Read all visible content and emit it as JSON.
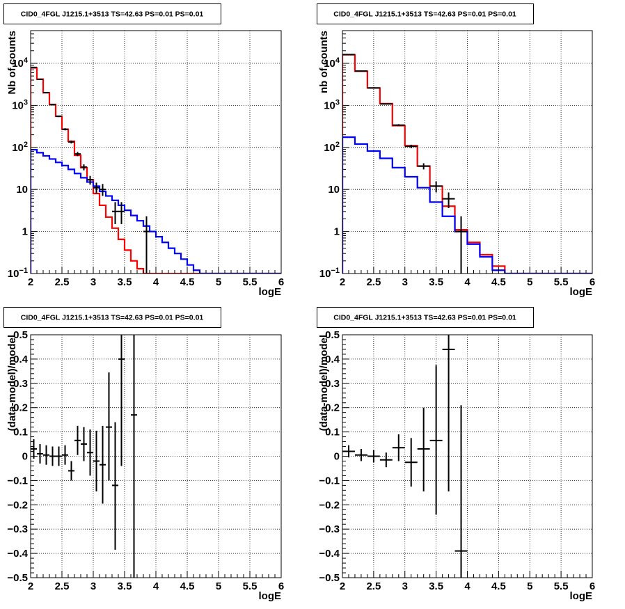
{
  "chart_data": [
    {
      "type": "line",
      "title": "CID0_4FGL J1215.1+3513 TS=42.63 PS=0.01 PS=0.01",
      "xlabel": "logE",
      "ylabel": "Nb of counts",
      "xlim": [
        2,
        6
      ],
      "ylim": [
        0.1,
        60000
      ],
      "yscale": "log",
      "grid": true,
      "xticks": [
        "2",
        "2.5",
        "3",
        "3.5",
        "4",
        "4.5",
        "5",
        "5.5",
        "6"
      ],
      "yticks": [
        {
          "v": 0.1,
          "label": "10",
          "exp": "−1"
        },
        {
          "v": 1,
          "label": "1"
        },
        {
          "v": 10,
          "label": "10"
        },
        {
          "v": 100,
          "label": "10",
          "exp": "2"
        },
        {
          "v": 1000,
          "label": "10",
          "exp": "3"
        },
        {
          "v": 10000,
          "label": "10",
          "exp": "4"
        }
      ],
      "bin_edges": [
        2,
        2.1,
        2.2,
        2.3,
        2.4,
        2.5,
        2.6,
        2.7,
        2.8,
        2.9,
        3.0,
        3.1,
        3.2,
        3.3,
        3.4,
        3.5,
        3.6,
        3.7,
        3.8,
        3.9,
        4.0,
        4.1,
        4.2,
        4.3,
        4.4,
        4.5,
        4.6,
        4.7,
        4.8,
        4.9,
        5.0,
        5.1,
        5.2,
        5.3,
        5.4,
        5.5,
        5.6,
        5.7,
        5.8,
        5.9,
        6.0
      ],
      "series": [
        {
          "color": "#ff0000",
          "style": "step",
          "values": [
            7800,
            4200,
            2000,
            1050,
            550,
            270,
            140,
            65,
            33,
            17,
            8,
            4.2,
            2.2,
            1.2,
            0.65,
            0.36,
            0.2,
            0.13,
            0.1,
            0.1,
            0.1,
            0.1,
            0.1,
            0.1,
            0.1,
            0.1,
            0.1,
            0.1,
            0.1,
            0.1,
            0.1,
            0.1,
            0.1,
            0.1,
            0.1,
            0.1,
            0.1,
            0.1,
            0.1,
            0.1
          ]
        },
        {
          "color": "#0000ff",
          "style": "step",
          "values": [
            88,
            75,
            63,
            53,
            44,
            37,
            30,
            24,
            19,
            15,
            12,
            9,
            7,
            5.5,
            4.2,
            3.2,
            2.4,
            1.8,
            1.35,
            1.0,
            0.75,
            0.55,
            0.4,
            0.3,
            0.22,
            0.16,
            0.12,
            0.1,
            0.1,
            0.1,
            0.1,
            0.1,
            0.1,
            0.1,
            0.1,
            0.1,
            0.1,
            0.1,
            0.1,
            0.1
          ]
        },
        {
          "color": "#000000",
          "style": "errorbar",
          "name": "data",
          "points": [
            {
              "x": 2.05,
              "y": 8000,
              "lo": 7900,
              "hi": 8100
            },
            {
              "x": 2.15,
              "y": 4150,
              "lo": 4090,
              "hi": 4210
            },
            {
              "x": 2.25,
              "y": 2020,
              "lo": 1980,
              "hi": 2065
            },
            {
              "x": 2.35,
              "y": 1040,
              "lo": 1010,
              "hi": 1070
            },
            {
              "x": 2.45,
              "y": 550,
              "lo": 527,
              "hi": 573
            },
            {
              "x": 2.55,
              "y": 270,
              "lo": 254,
              "hi": 286
            },
            {
              "x": 2.65,
              "y": 135,
              "lo": 124,
              "hi": 146
            },
            {
              "x": 2.75,
              "y": 70,
              "lo": 62,
              "hi": 78
            },
            {
              "x": 2.85,
              "y": 34,
              "lo": 28.5,
              "hi": 39.5
            },
            {
              "x": 2.95,
              "y": 17,
              "lo": 13,
              "hi": 21
            },
            {
              "x": 3.05,
              "y": 11,
              "lo": 8,
              "hi": 14.5
            },
            {
              "x": 3.15,
              "y": 10,
              "lo": 7,
              "hi": 13.5
            },
            {
              "x": 3.35,
              "y": 3,
              "lo": 1.5,
              "hi": 5
            },
            {
              "x": 3.45,
              "y": 3,
              "lo": 1.5,
              "hi": 5
            },
            {
              "x": 3.85,
              "y": 1,
              "lo": 0.1,
              "hi": 2.3
            }
          ]
        }
      ]
    },
    {
      "type": "line",
      "title": "CID0_4FGL J1215.1+3513 TS=42.63 PS=0.01 PS=0.01",
      "xlabel": "logE",
      "ylabel": "nb of counts",
      "xlim": [
        2,
        6
      ],
      "ylim": [
        0.1,
        60000
      ],
      "yscale": "log",
      "grid": true,
      "xticks": [
        "2",
        "2.5",
        "3",
        "3.5",
        "4",
        "4.5",
        "5",
        "5.5",
        "6"
      ],
      "yticks": [
        {
          "v": 0.1,
          "label": "10",
          "exp": "−1"
        },
        {
          "v": 1,
          "label": "1"
        },
        {
          "v": 10,
          "label": "10"
        },
        {
          "v": 100,
          "label": "10",
          "exp": "2"
        },
        {
          "v": 1000,
          "label": "10",
          "exp": "3"
        },
        {
          "v": 10000,
          "label": "10",
          "exp": "4"
        }
      ],
      "bin_edges": [
        2,
        2.2,
        2.4,
        2.6,
        2.8,
        3.0,
        3.2,
        3.4,
        3.6,
        3.8,
        4.0,
        4.2,
        4.4,
        4.6,
        4.8,
        5.0,
        5.2,
        5.4,
        5.6,
        5.8,
        6.0
      ],
      "series": [
        {
          "color": "#ff0000",
          "style": "step",
          "values": [
            16000,
            6500,
            2600,
            1100,
            330,
            110,
            36,
            12,
            4,
            1.1,
            0.55,
            0.28,
            0.15,
            0.1,
            0.1,
            0.1,
            0.1,
            0.1,
            0.1,
            0.1
          ]
        },
        {
          "color": "#0000ff",
          "style": "step",
          "values": [
            175,
            120,
            82,
            55,
            33,
            20,
            11,
            5,
            2.3,
            1.0,
            0.5,
            0.25,
            0.12,
            0.1,
            0.1,
            0.1,
            0.1,
            0.1,
            0.1,
            0.1
          ]
        },
        {
          "color": "#000000",
          "style": "errorbar",
          "name": "data",
          "points": [
            {
              "x": 2.1,
              "y": 16200,
              "lo": 16070,
              "hi": 16330
            },
            {
              "x": 2.3,
              "y": 6550,
              "lo": 6470,
              "hi": 6630
            },
            {
              "x": 2.5,
              "y": 2600,
              "lo": 2550,
              "hi": 2650
            },
            {
              "x": 2.7,
              "y": 1080,
              "lo": 1047,
              "hi": 1113
            },
            {
              "x": 2.9,
              "y": 340,
              "lo": 322,
              "hi": 358
            },
            {
              "x": 3.1,
              "y": 106,
              "lo": 96,
              "hi": 116
            },
            {
              "x": 3.3,
              "y": 36,
              "lo": 30,
              "hi": 42
            },
            {
              "x": 3.5,
              "y": 12,
              "lo": 8.5,
              "hi": 15.5
            },
            {
              "x": 3.7,
              "y": 6,
              "lo": 3.6,
              "hi": 8.5
            },
            {
              "x": 3.9,
              "y": 1,
              "lo": 0.1,
              "hi": 2.3
            }
          ]
        }
      ]
    },
    {
      "type": "scatter",
      "title": "CID0_4FGL J1215.1+3513 TS=42.63 PS=0.01 PS=0.01",
      "xlabel": "logE",
      "ylabel": "(data-model)/model",
      "xlim": [
        2,
        6
      ],
      "ylim": [
        -0.5,
        0.5
      ],
      "grid": true,
      "xticks": [
        "2",
        "2.5",
        "3",
        "3.5",
        "4",
        "4.5",
        "5",
        "5.5",
        "6"
      ],
      "yticks": [
        {
          "v": 0.5,
          "label": "0.5"
        },
        {
          "v": 0.4,
          "label": "0.4"
        },
        {
          "v": 0.3,
          "label": "0.3"
        },
        {
          "v": 0.2,
          "label": "0.2"
        },
        {
          "v": 0.1,
          "label": "0.1"
        },
        {
          "v": 0,
          "label": "0"
        },
        {
          "v": -0.1,
          "label": "−0.1"
        },
        {
          "v": -0.2,
          "label": "−0.2"
        },
        {
          "v": -0.3,
          "label": "−0.3"
        },
        {
          "v": -0.4,
          "label": "−0.4"
        },
        {
          "v": -0.5,
          "label": "−0.5"
        }
      ],
      "series": [
        {
          "color": "#000000",
          "style": "errorbar",
          "name": "residuals",
          "xerr": 0.05,
          "points": [
            {
              "x": 2.05,
              "y": 0.03,
              "lo": -0.01,
              "hi": 0.07
            },
            {
              "x": 2.15,
              "y": 0.01,
              "lo": -0.03,
              "hi": 0.05
            },
            {
              "x": 2.25,
              "y": 0.005,
              "lo": -0.035,
              "hi": 0.045
            },
            {
              "x": 2.35,
              "y": 0.0,
              "lo": -0.04,
              "hi": 0.04
            },
            {
              "x": 2.45,
              "y": 0.0,
              "lo": -0.04,
              "hi": 0.04
            },
            {
              "x": 2.55,
              "y": 0.005,
              "lo": -0.035,
              "hi": 0.045
            },
            {
              "x": 2.65,
              "y": -0.06,
              "lo": -0.1,
              "hi": -0.02
            },
            {
              "x": 2.75,
              "y": 0.065,
              "lo": 0.005,
              "hi": 0.125
            },
            {
              "x": 2.85,
              "y": 0.05,
              "lo": -0.02,
              "hi": 0.12
            },
            {
              "x": 2.95,
              "y": 0.015,
              "lo": -0.08,
              "hi": 0.11
            },
            {
              "x": 3.05,
              "y": -0.02,
              "lo": -0.145,
              "hi": 0.105
            },
            {
              "x": 3.15,
              "y": -0.035,
              "lo": -0.195,
              "hi": 0.125
            },
            {
              "x": 3.25,
              "y": 0.12,
              "lo": -0.1,
              "hi": 0.345
            },
            {
              "x": 3.35,
              "y": -0.12,
              "lo": -0.385,
              "hi": 0.14
            },
            {
              "x": 3.45,
              "y": 0.4,
              "lo": -0.04,
              "hi": 0.5
            },
            {
              "x": 3.65,
              "y": 0.17,
              "lo": -0.5,
              "hi": 0.5
            }
          ]
        }
      ]
    },
    {
      "type": "scatter",
      "title": "CID0_4FGL J1215.1+3513 TS=42.63 PS=0.01 PS=0.01",
      "xlabel": "logE",
      "ylabel": "(data-model)/model",
      "xlim": [
        2,
        6
      ],
      "ylim": [
        -0.5,
        0.5
      ],
      "grid": true,
      "xticks": [
        "2",
        "2.5",
        "3",
        "3.5",
        "4",
        "4.5",
        "5",
        "5.5",
        "6"
      ],
      "yticks": [
        {
          "v": 0.5,
          "label": "0.5"
        },
        {
          "v": 0.4,
          "label": "0.4"
        },
        {
          "v": 0.3,
          "label": "0.3"
        },
        {
          "v": 0.2,
          "label": "0.2"
        },
        {
          "v": 0.1,
          "label": "0.1"
        },
        {
          "v": 0,
          "label": "0"
        },
        {
          "v": -0.1,
          "label": "−0.1"
        },
        {
          "v": -0.2,
          "label": "−0.2"
        },
        {
          "v": -0.3,
          "label": "−0.3"
        },
        {
          "v": -0.4,
          "label": "−0.4"
        },
        {
          "v": -0.5,
          "label": "−0.5"
        }
      ],
      "series": [
        {
          "color": "#000000",
          "style": "errorbar",
          "name": "residuals",
          "xerr": 0.1,
          "points": [
            {
              "x": 2.1,
              "y": 0.02,
              "lo": -0.005,
              "hi": 0.045
            },
            {
              "x": 2.3,
              "y": 0.005,
              "lo": -0.02,
              "hi": 0.03
            },
            {
              "x": 2.5,
              "y": 0.0,
              "lo": -0.025,
              "hi": 0.025
            },
            {
              "x": 2.7,
              "y": -0.015,
              "lo": -0.045,
              "hi": 0.015
            },
            {
              "x": 2.9,
              "y": 0.035,
              "lo": -0.02,
              "hi": 0.09
            },
            {
              "x": 3.1,
              "y": -0.025,
              "lo": -0.125,
              "hi": 0.075
            },
            {
              "x": 3.3,
              "y": 0.03,
              "lo": -0.145,
              "hi": 0.2
            },
            {
              "x": 3.5,
              "y": 0.065,
              "lo": -0.24,
              "hi": 0.375
            },
            {
              "x": 3.7,
              "y": 0.44,
              "lo": -0.145,
              "hi": 0.5
            },
            {
              "x": 3.9,
              "y": -0.39,
              "lo": -0.5,
              "hi": 0.21
            }
          ]
        }
      ]
    }
  ]
}
